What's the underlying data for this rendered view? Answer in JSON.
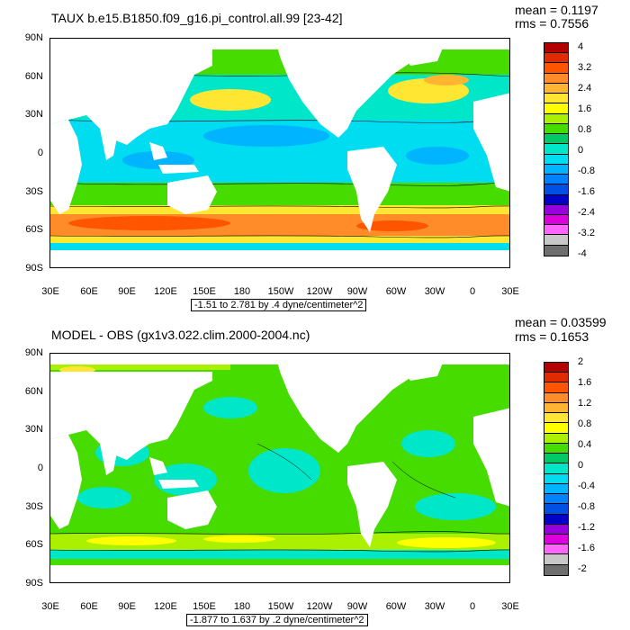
{
  "panels": [
    {
      "title": "TAUX b.e15.B1850.f09_g16.pi_control.all.99 [23-42]",
      "mean": "mean = 0.1197",
      "rms": "rms = 0.7556",
      "lat_labels": [
        "90N",
        "60N",
        "30N",
        "0",
        "30S",
        "60S",
        "90S"
      ],
      "lon_labels": [
        "30E",
        "60E",
        "90E",
        "120E",
        "150E",
        "180",
        "150W",
        "120W",
        "90W",
        "60W",
        "30W",
        "0",
        "30E"
      ],
      "range_text": "-1.51 to 2.781 by .4 dyne/centimeter^2",
      "colorbar_labels": [
        "4",
        "3.2",
        "2.4",
        "1.6",
        "0.8",
        "0",
        "-0.8",
        "-1.6",
        "-2.4",
        "-3.2",
        "-4"
      ],
      "colorbar_colors": [
        "#b30000",
        "#e02a00",
        "#ff5500",
        "#ff8c28",
        "#ffb432",
        "#ffe632",
        "#ffff00",
        "#aaf000",
        "#46dc00",
        "#00c864",
        "#00e6c8",
        "#00dcf0",
        "#00b4ff",
        "#0082ff",
        "#0050e6",
        "#0000c8",
        "#9600dc",
        "#dc00dc",
        "#ff64ff",
        "#c8c8c8",
        "#6e6e6e"
      ]
    },
    {
      "title": "MODEL - OBS (gx1v3.022.clim.2000-2004.nc)",
      "mean": "mean = 0.03599",
      "rms": "rms = 0.1653",
      "lat_labels": [
        "90N",
        "60N",
        "30N",
        "0",
        "30S",
        "60S",
        "90S"
      ],
      "lon_labels": [
        "30E",
        "60E",
        "90E",
        "120E",
        "150E",
        "180",
        "150W",
        "120W",
        "90W",
        "60W",
        "30W",
        "0",
        "30E"
      ],
      "range_text": "-1.877 to 1.637 by .2 dyne/centimeter^2",
      "colorbar_labels": [
        "2",
        "1.6",
        "1.2",
        "0.8",
        "0.4",
        "0",
        "-0.4",
        "-0.8",
        "-1.2",
        "-1.6",
        "-2"
      ],
      "colorbar_colors": [
        "#b30000",
        "#e02a00",
        "#ff5500",
        "#ff8c28",
        "#ffb432",
        "#ffe632",
        "#ffff00",
        "#aaf000",
        "#46dc00",
        "#00c864",
        "#00e6c8",
        "#00dcf0",
        "#00b4ff",
        "#0082ff",
        "#0050e6",
        "#0000c8",
        "#9600dc",
        "#dc00dc",
        "#ff64ff",
        "#c8c8c8",
        "#6e6e6e"
      ]
    }
  ]
}
